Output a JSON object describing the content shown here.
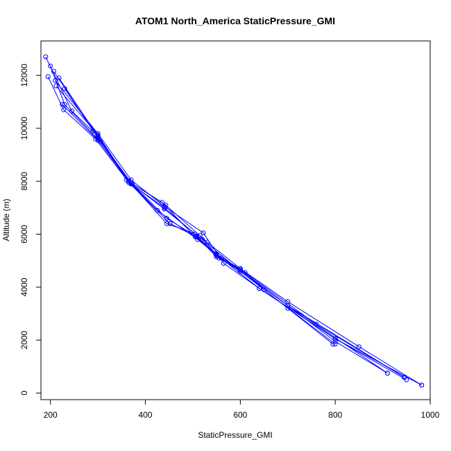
{
  "chart_data": {
    "type": "line",
    "title": "ATOM1 North_America StaticPressure_GMI",
    "xlabel": "StaticPressure_GMI",
    "ylabel": "Altitude (m)",
    "xlim": [
      180,
      1000
    ],
    "ylim": [
      -250,
      13300
    ],
    "x_ticks": [
      200,
      400,
      600,
      800,
      1000
    ],
    "y_ticks": [
      0,
      2000,
      4000,
      6000,
      8000,
      10000,
      12000
    ],
    "grid": false,
    "legend": "none",
    "color": "#0000ff",
    "markers": "open-circle",
    "series": [
      {
        "x": [
          190,
          245,
          300,
          360,
          440,
          520,
          600,
          700,
          795
        ],
        "y": [
          12700,
          10650,
          9700,
          8050,
          6950,
          5800,
          4600,
          3200,
          1850
        ]
      },
      {
        "x": [
          200,
          230,
          305,
          370,
          445,
          515,
          555,
          600,
          700,
          800,
          910
        ],
        "y": [
          12350,
          10900,
          9500,
          7900,
          6400,
          5950,
          5100,
          4600,
          3300,
          1950,
          750
        ]
      },
      {
        "x": [
          195,
          228,
          295,
          365,
          452,
          508,
          550,
          610,
          760,
          945
        ],
        "y": [
          11950,
          10700,
          9600,
          7950,
          6400,
          5900,
          5150,
          4550,
          2600,
          600
        ]
      },
      {
        "x": [
          207,
          290,
          365,
          425,
          510,
          548,
          640,
          800,
          982
        ],
        "y": [
          12150,
          9900,
          8000,
          6900,
          5800,
          5250,
          3950,
          2050,
          300
        ]
      },
      {
        "x": [
          210,
          300,
          370,
          440,
          522,
          565,
          640,
          800,
          950
        ],
        "y": [
          11800,
          9800,
          8050,
          7050,
          6050,
          4900,
          3950,
          2050,
          500
        ]
      },
      {
        "x": [
          212,
          300,
          365,
          443,
          530,
          600,
          700,
          850,
          982
        ],
        "y": [
          11600,
          9750,
          8000,
          7100,
          5700,
          4700,
          3450,
          1750,
          300
        ]
      },
      {
        "x": [
          218,
          300,
          370,
          440,
          505,
          550,
          600,
          650,
          800
        ],
        "y": [
          11900,
          9700,
          7900,
          7000,
          6000,
          5200,
          4700,
          3900,
          1850
        ]
      },
      {
        "x": [
          225,
          300,
          365,
          435,
          505,
          550,
          600,
          700,
          910
        ],
        "y": [
          10900,
          9550,
          8000,
          7200,
          5900,
          5250,
          4650,
          3300,
          750
        ]
      },
      {
        "x": [
          230,
          300,
          372,
          445,
          508,
          560,
          600,
          700,
          945
        ],
        "y": [
          11500,
          9650,
          7900,
          6600,
          5900,
          5100,
          4650,
          3300,
          600
        ]
      }
    ]
  }
}
